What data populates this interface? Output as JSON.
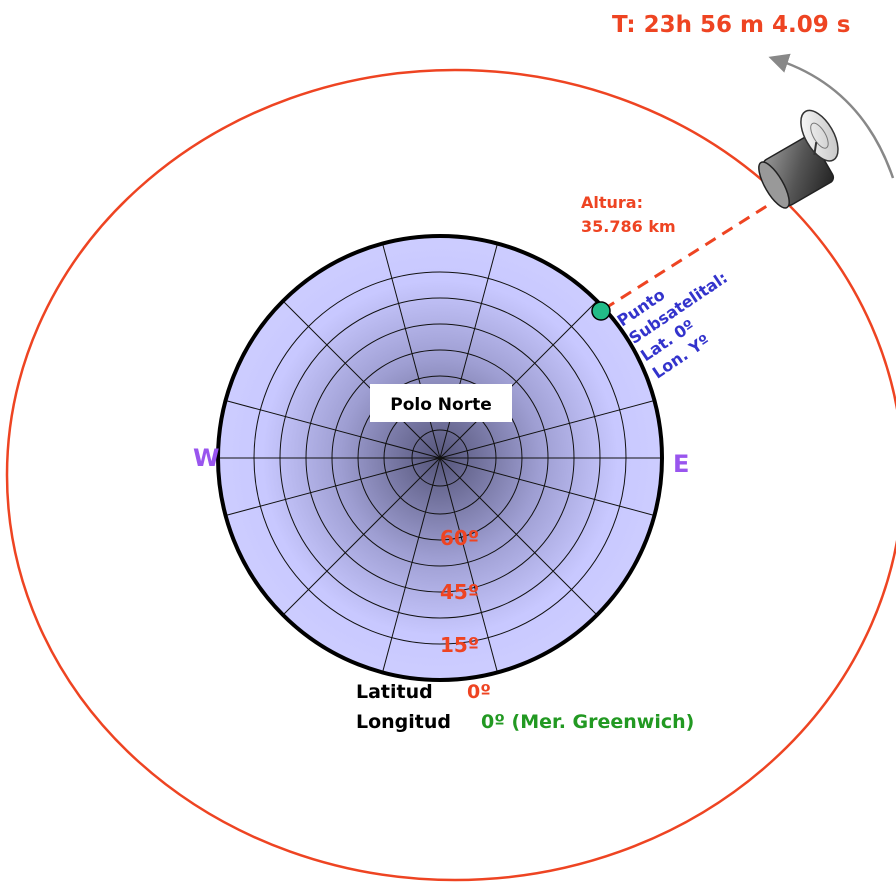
{
  "period_label": "T: 23h 56 m 4.09 s",
  "altitude": {
    "label": "Altura:",
    "value": "35.786 km"
  },
  "subsatellite": {
    "lines": [
      "Punto",
      "Subsatelital:",
      "Lat. 0º",
      "Lon. Yº"
    ]
  },
  "pole_label": "Polo Norte",
  "west_label": "W",
  "east_label": "E",
  "latitude_ticks": [
    "60º",
    "45º",
    "15º"
  ],
  "latitude_caption": {
    "label": "Latitud",
    "value": "0º"
  },
  "longitude_caption": {
    "label": "Longitud",
    "value": "0º (Mer. Greenwich)"
  },
  "colors": {
    "orbit": "#ee4422",
    "earth_fill": "#c8c8ff",
    "earth_center": "#55557a",
    "subsatellite_point": "#22bb88",
    "subsatellite_text": "#3333cc",
    "cardinal": "#9955ee",
    "latitude": "#ee4422",
    "greenwich": "#229922"
  },
  "icons": {
    "satellite": "satellite-dish-icon",
    "rotation_arrow": "curved-arrow-icon"
  }
}
